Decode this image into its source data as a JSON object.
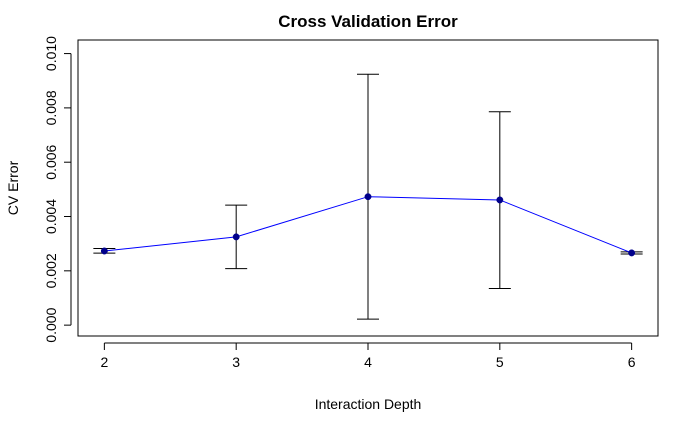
{
  "chart_data": {
    "type": "line",
    "title": "Cross Validation Error",
    "xlabel": "Interaction Depth",
    "ylabel": "CV Error",
    "x": [
      2,
      3,
      4,
      5,
      6
    ],
    "xticks": [
      "2",
      "3",
      "4",
      "5",
      "6"
    ],
    "xlim": [
      1.8,
      6.2
    ],
    "yticks": [
      "0.000",
      "0.002",
      "0.004",
      "0.006",
      "0.008",
      "0.010"
    ],
    "ylim": [
      -0.0004,
      0.0105
    ],
    "grid": false,
    "series": [
      {
        "values": [
          0.00273,
          0.00325,
          0.00473,
          0.00461,
          0.00266
        ],
        "error_lower": [
          0.00265,
          0.00208,
          0.00022,
          0.00135,
          0.00262
        ],
        "error_upper": [
          0.00282,
          0.00442,
          0.00924,
          0.00786,
          0.0027
        ]
      }
    ],
    "colors": {
      "line": "#0000ff",
      "points": "#00008b",
      "error_bars": "#000000"
    }
  }
}
